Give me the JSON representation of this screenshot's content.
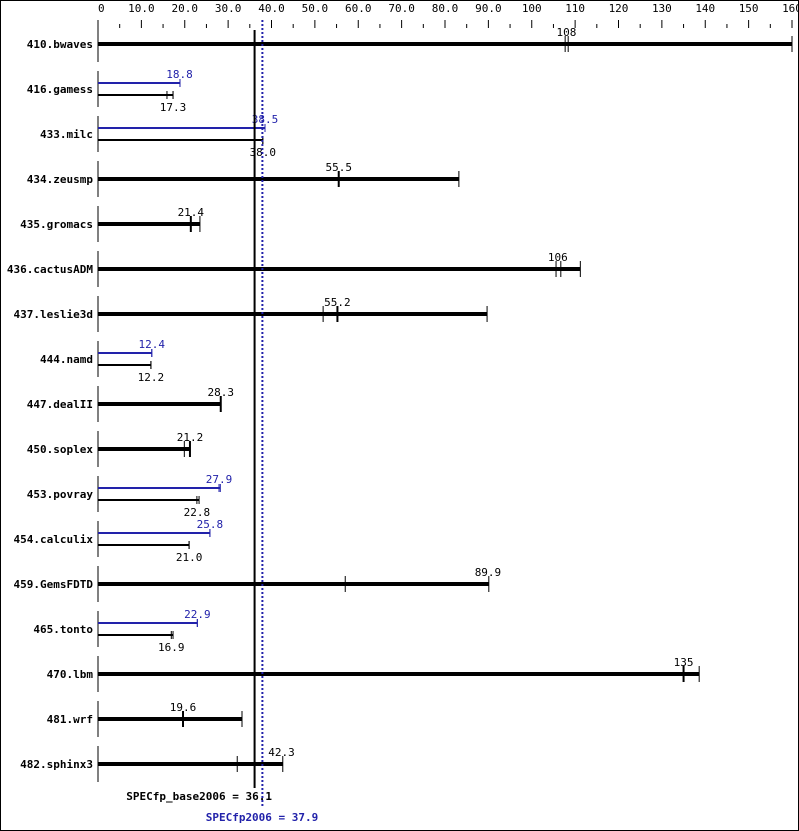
{
  "chart_data": {
    "type": "bar",
    "orientation": "horizontal",
    "xlim": [
      0,
      160
    ],
    "x_ticks": [
      "0",
      "10.0",
      "20.0",
      "30.0",
      "40.0",
      "50.0",
      "60.0",
      "70.0",
      "80.0",
      "90.0",
      "100",
      "110",
      "120",
      "130",
      "140",
      "150",
      "160"
    ],
    "x_tick_values": [
      0,
      10,
      20,
      30,
      40,
      50,
      60,
      70,
      80,
      90,
      100,
      110,
      120,
      130,
      140,
      150,
      160
    ],
    "colors": {
      "base": "#000000",
      "peak": "#2222aa"
    },
    "benchmarks": [
      {
        "name": "410.bwaves",
        "combined": true,
        "label": "108",
        "value": 108,
        "runs": [
          107.7,
          108.4
        ],
        "max": 160
      },
      {
        "name": "416.gamess",
        "combined": false,
        "peak_label": "18.8",
        "peak": 18.8,
        "peak_runs": [
          18.9
        ],
        "peak_max": 18.9,
        "base_label": "17.3",
        "base": 17.3,
        "base_runs": [
          15.9,
          17.3
        ],
        "base_max": 17.3
      },
      {
        "name": "433.milc",
        "combined": false,
        "peak_label": "38.5",
        "peak": 38.5,
        "peak_runs": [
          38.5
        ],
        "peak_max": 38.5,
        "base_label": "38.0",
        "base": 38.0,
        "base_runs": [
          38.0
        ],
        "base_max": 38.0
      },
      {
        "name": "434.zeusmp",
        "combined": true,
        "label": "55.5",
        "value": 55.5,
        "runs": [
          55.5
        ],
        "max": 83.2
      },
      {
        "name": "435.gromacs",
        "combined": true,
        "label": "21.4",
        "value": 21.4,
        "runs": [
          21.4
        ],
        "max": 23.5
      },
      {
        "name": "436.cactusADM",
        "combined": true,
        "label": "106",
        "value": 106,
        "runs": [
          105.6,
          106.7
        ],
        "max": 111.2
      },
      {
        "name": "437.leslie3d",
        "combined": true,
        "label": "55.2",
        "value": 55.2,
        "runs": [
          51.9,
          55.2
        ],
        "max": 89.7
      },
      {
        "name": "444.namd",
        "combined": false,
        "peak_label": "12.4",
        "peak": 12.4,
        "peak_runs": [
          12.4
        ],
        "peak_max": 12.4,
        "base_label": "12.2",
        "base": 12.2,
        "base_runs": [
          12.2
        ],
        "base_max": 12.2
      },
      {
        "name": "447.dealII",
        "combined": true,
        "label": "28.3",
        "value": 28.3,
        "runs": [
          28.3
        ],
        "max": 28.3
      },
      {
        "name": "450.soplex",
        "combined": true,
        "label": "21.2",
        "value": 21.2,
        "runs": [
          19.9,
          21.2
        ],
        "max": 21.2
      },
      {
        "name": "453.povray",
        "combined": false,
        "peak_label": "27.9",
        "peak": 27.9,
        "peak_runs": [
          27.9
        ],
        "peak_max": 28.2,
        "base_label": "22.8",
        "base": 22.8,
        "base_runs": [
          22.8
        ],
        "base_max": 23.3
      },
      {
        "name": "454.calculix",
        "combined": false,
        "peak_label": "25.8",
        "peak": 25.8,
        "peak_runs": [
          25.8
        ],
        "peak_max": 25.8,
        "base_label": "21.0",
        "base": 21.0,
        "base_runs": [
          21.0
        ],
        "base_max": 21.0
      },
      {
        "name": "459.GemsFDTD",
        "combined": true,
        "label": "89.9",
        "value": 89.9,
        "runs": [
          57.0
        ],
        "max": 90.1
      },
      {
        "name": "465.tonto",
        "combined": false,
        "peak_label": "22.9",
        "peak": 22.9,
        "peak_runs": [
          22.9
        ],
        "peak_max": 22.9,
        "base_label": "16.9",
        "base": 16.9,
        "base_runs": [
          16.9
        ],
        "base_max": 17.3
      },
      {
        "name": "470.lbm",
        "combined": true,
        "label": "135",
        "value": 135,
        "runs": [
          135
        ],
        "max": 138.6
      },
      {
        "name": "481.wrf",
        "combined": true,
        "label": "19.6",
        "value": 19.6,
        "runs": [
          19.6
        ],
        "max": 33.2
      },
      {
        "name": "482.sphinx3",
        "combined": true,
        "label": "42.3",
        "value": 42.3,
        "runs": [
          32.1
        ],
        "max": 42.6
      }
    ],
    "base_metric": {
      "label": "SPECfp_base2006 = 36.1",
      "value": 36.1
    },
    "peak_metric": {
      "label": "SPECfp2006 = 37.9",
      "value": 37.9
    }
  }
}
